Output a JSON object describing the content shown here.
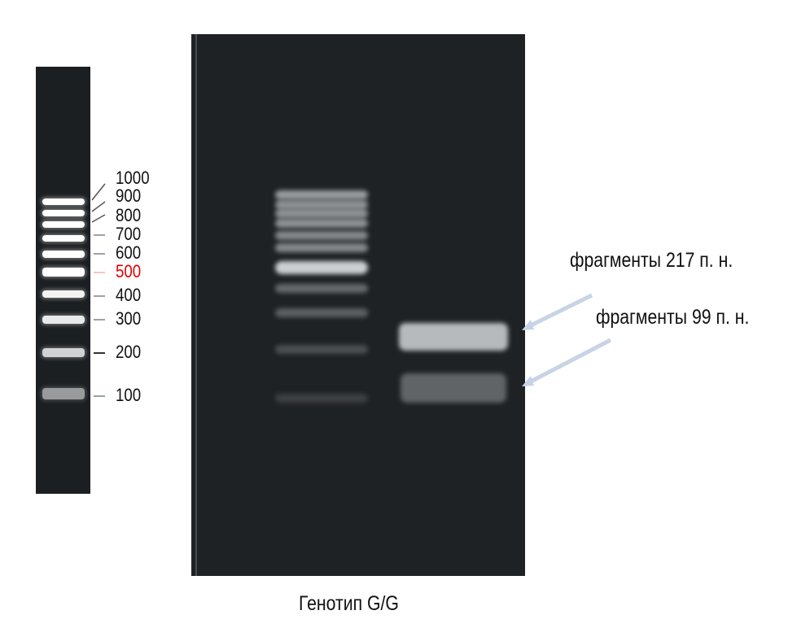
{
  "ladder": {
    "labels": [
      "1000",
      "900",
      "800",
      "700",
      "600",
      "500",
      "400",
      "300",
      "200",
      "100"
    ],
    "highlight_label": "500",
    "highlight_color": "#e00000"
  },
  "gel": {
    "sample_bands": [
      {
        "label": "фрагменты 217 п. н."
      },
      {
        "label": "фрагменты 99 п. н."
      }
    ],
    "caption": "Генотип G/G"
  },
  "colors": {
    "gel_background": "#1f2225",
    "arrow": "#c8d4e6"
  }
}
